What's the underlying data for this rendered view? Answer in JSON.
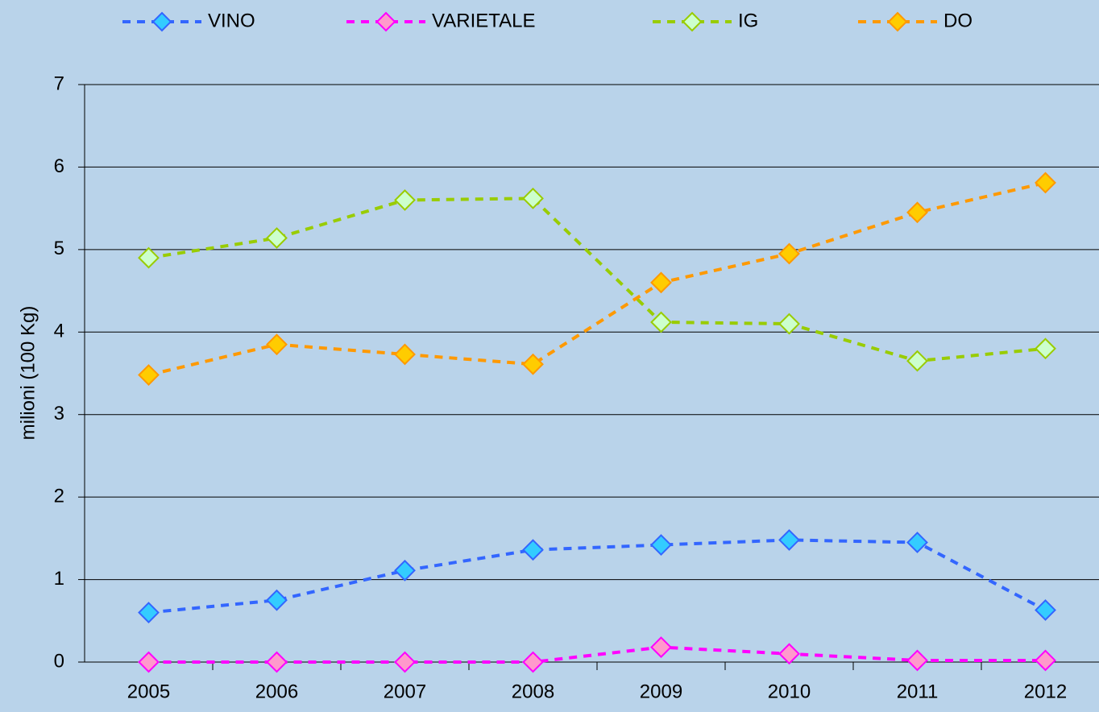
{
  "chart_data": {
    "type": "line",
    "y_label": "milioni (100 Kg)",
    "categories": [
      "2005",
      "2006",
      "2007",
      "2008",
      "2009",
      "2010",
      "2011",
      "2012"
    ],
    "series": [
      {
        "name": "VINO",
        "color": "#3366ff",
        "marker_color": "#33ccff",
        "values": [
          0.6,
          0.75,
          1.11,
          1.36,
          1.42,
          1.48,
          1.45,
          0.63
        ]
      },
      {
        "name": "VARIETALE",
        "color": "#ff00ff",
        "marker_color": "#ff99cc",
        "values": [
          0,
          0,
          0,
          0,
          0.18,
          0.1,
          0.02,
          0.02
        ]
      },
      {
        "name": "IG",
        "color": "#99cc00",
        "marker_color": "#ccffcc",
        "values": [
          4.9,
          5.14,
          5.6,
          5.62,
          4.12,
          4.1,
          3.65,
          3.8
        ]
      },
      {
        "name": "DO",
        "color": "#ff9900",
        "marker_color": "#ffcc00",
        "values": [
          3.48,
          3.85,
          3.73,
          3.61,
          4.6,
          4.95,
          5.45,
          5.81
        ]
      }
    ],
    "ylim": [
      0,
      7
    ],
    "yticks": [
      0,
      1,
      2,
      3,
      4,
      5,
      6,
      7
    ],
    "grid": true,
    "legend": "top"
  }
}
